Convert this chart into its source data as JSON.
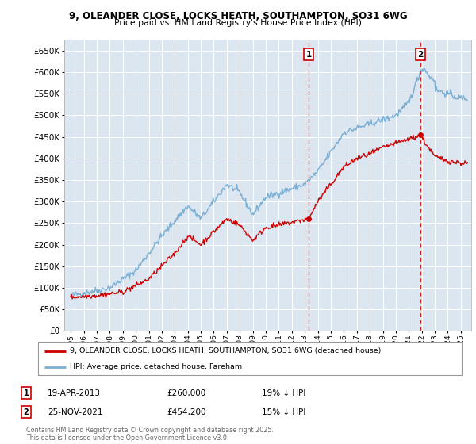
{
  "title": "9, OLEANDER CLOSE, LOCKS HEATH, SOUTHAMPTON, SO31 6WG",
  "subtitle": "Price paid vs. HM Land Registry's House Price Index (HPI)",
  "ylim": [
    0,
    675000
  ],
  "yticks": [
    0,
    50000,
    100000,
    150000,
    200000,
    250000,
    300000,
    350000,
    400000,
    450000,
    500000,
    550000,
    600000,
    650000
  ],
  "legend_label_red": "9, OLEANDER CLOSE, LOCKS HEATH, SOUTHAMPTON, SO31 6WG (detached house)",
  "legend_label_blue": "HPI: Average price, detached house, Fareham",
  "marker1_date": 2013.29,
  "marker1_price": 260000,
  "marker2_date": 2021.9,
  "marker2_price": 454200,
  "annotation1_date": "19-APR-2013",
  "annotation1_price": "£260,000",
  "annotation1_hpi": "19% ↓ HPI",
  "annotation2_date": "25-NOV-2021",
  "annotation2_price": "£454,200",
  "annotation2_hpi": "15% ↓ HPI",
  "footer": "Contains HM Land Registry data © Crown copyright and database right 2025.\nThis data is licensed under the Open Government Licence v3.0.",
  "bg_color": "#dce6f1",
  "line_color_red": "#cc0000",
  "line_color_blue": "#7bafd4",
  "xlim_left": 1994.5,
  "xlim_right": 2025.8
}
